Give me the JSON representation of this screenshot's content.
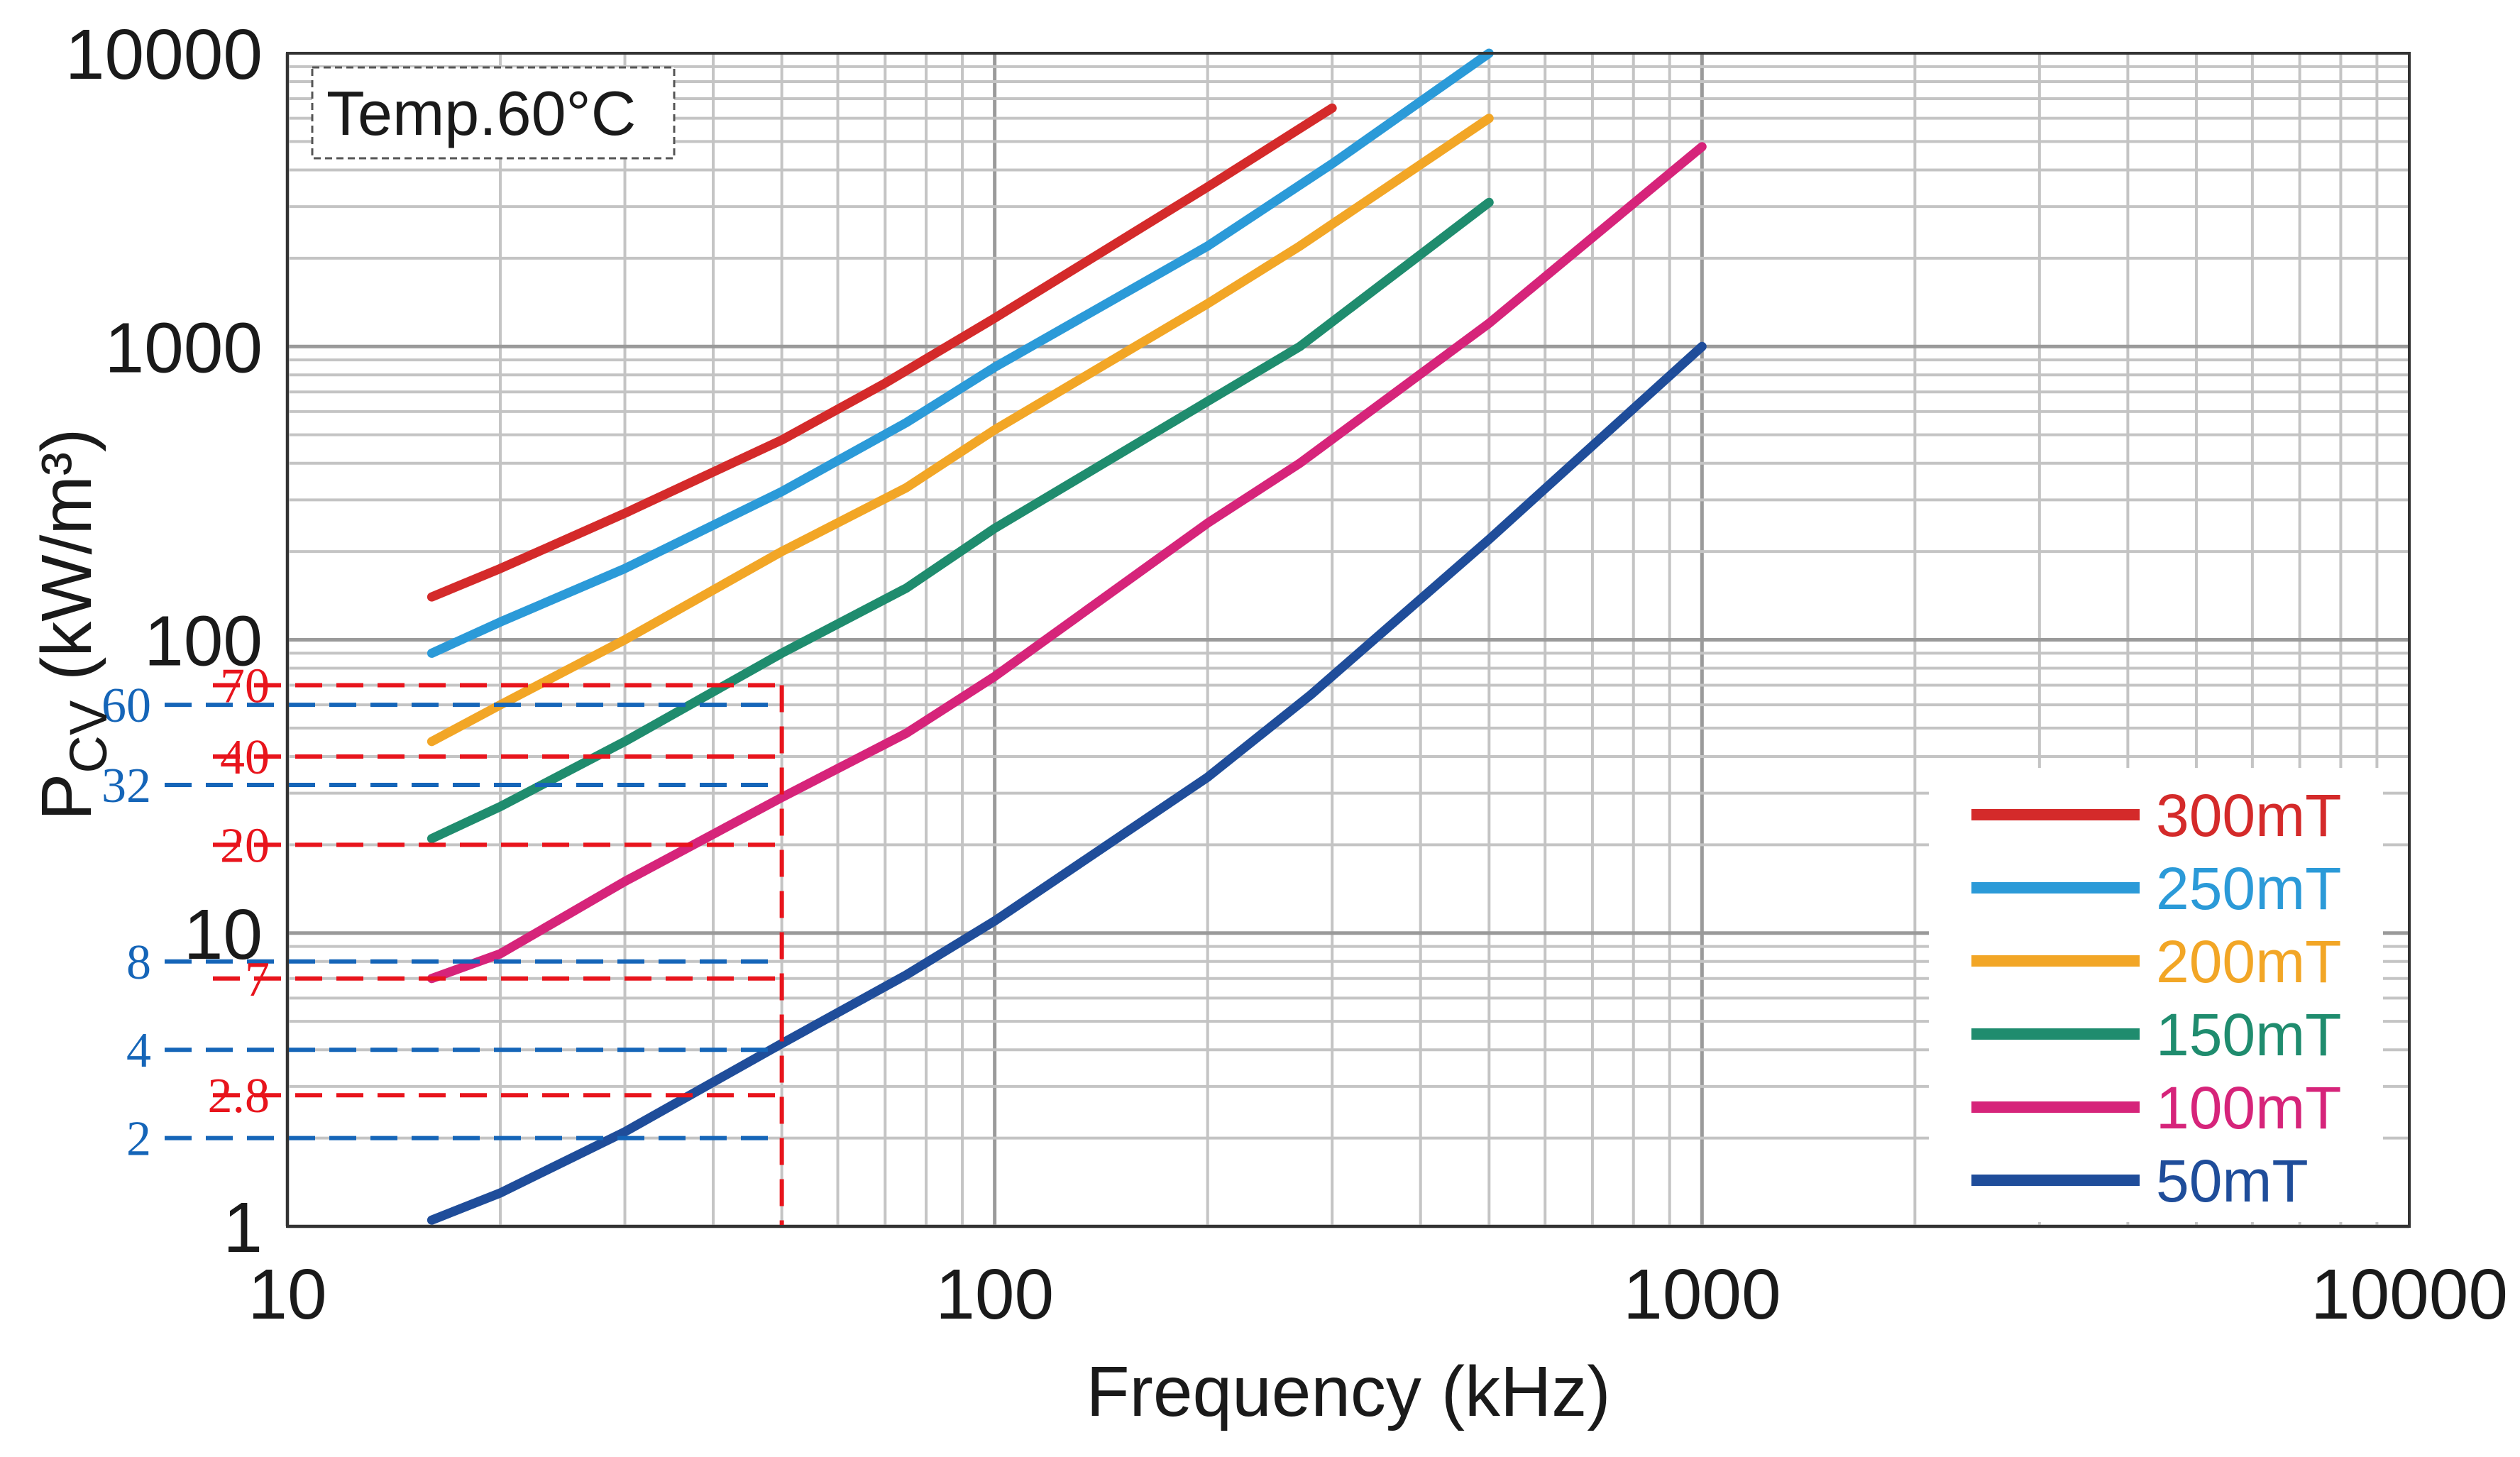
{
  "chart_data": {
    "type": "line",
    "x_scale": "log",
    "y_scale": "log",
    "xlim": [
      10,
      10000
    ],
    "ylim": [
      1,
      10000
    ],
    "xlabel": "Frequency (kHz)",
    "ylabel_main": "P",
    "ylabel_sub": "CV",
    "ylabel_rest": " (kW/m³)",
    "annotation_box": "Temp.60°C",
    "x_ticks": [
      {
        "value": 10,
        "label": "10"
      },
      {
        "value": 100,
        "label": "100"
      },
      {
        "value": 1000,
        "label": "1000"
      },
      {
        "value": 10000,
        "label": "10000"
      }
    ],
    "y_ticks": [
      {
        "value": 1,
        "label": "1"
      },
      {
        "value": 10,
        "label": "10"
      },
      {
        "value": 100,
        "label": "100"
      },
      {
        "value": 1000,
        "label": "1000"
      },
      {
        "value": 10000,
        "label": "10000"
      }
    ],
    "legend_position": "bottom-right",
    "series": [
      {
        "name": "300mT",
        "color": "#d42a2a",
        "points": [
          [
            16,
            140
          ],
          [
            20,
            175
          ],
          [
            30,
            270
          ],
          [
            50,
            480
          ],
          [
            70,
            750
          ],
          [
            100,
            1250
          ],
          [
            200,
            3500
          ],
          [
            300,
            6500
          ]
        ]
      },
      {
        "name": "250mT",
        "color": "#2b9ad8",
        "points": [
          [
            16,
            90
          ],
          [
            20,
            115
          ],
          [
            30,
            175
          ],
          [
            50,
            320
          ],
          [
            75,
            550
          ],
          [
            100,
            850
          ],
          [
            200,
            2200
          ],
          [
            300,
            4200
          ],
          [
            500,
            10000
          ]
        ]
      },
      {
        "name": "200mT",
        "color": "#f2a626",
        "points": [
          [
            16,
            45
          ],
          [
            20,
            60
          ],
          [
            30,
            100
          ],
          [
            50,
            200
          ],
          [
            75,
            330
          ],
          [
            100,
            520
          ],
          [
            200,
            1400
          ],
          [
            270,
            2200
          ],
          [
            500,
            6000
          ]
        ]
      },
      {
        "name": "150mT",
        "color": "#1f8c6e",
        "points": [
          [
            16,
            21
          ],
          [
            20,
            27
          ],
          [
            30,
            45
          ],
          [
            50,
            90
          ],
          [
            75,
            150
          ],
          [
            100,
            240
          ],
          [
            200,
            650
          ],
          [
            270,
            1000
          ],
          [
            500,
            3100
          ]
        ]
      },
      {
        "name": "100mT",
        "color": "#d6247a",
        "points": [
          [
            16,
            7
          ],
          [
            20,
            8.5
          ],
          [
            30,
            15
          ],
          [
            50,
            29
          ],
          [
            75,
            48
          ],
          [
            100,
            75
          ],
          [
            200,
            250
          ],
          [
            270,
            400
          ],
          [
            500,
            1200
          ],
          [
            1000,
            4800
          ]
        ]
      },
      {
        "name": "50mT",
        "color": "#1f4d9a",
        "points": [
          [
            16,
            1.05
          ],
          [
            20,
            1.3
          ],
          [
            30,
            2.1
          ],
          [
            50,
            4.2
          ],
          [
            75,
            7.2
          ],
          [
            100,
            11
          ],
          [
            200,
            34
          ],
          [
            280,
            65
          ],
          [
            500,
            220
          ],
          [
            1000,
            1000
          ]
        ]
      }
    ],
    "ref_x_value": 50,
    "red_ref_lines": [
      {
        "value": 70,
        "label": "70"
      },
      {
        "value": 40,
        "label": "40"
      },
      {
        "value": 20,
        "label": "20"
      },
      {
        "value": 7,
        "label": "7"
      },
      {
        "value": 2.8,
        "label": "2.8"
      }
    ],
    "blue_ref_lines": [
      {
        "value": 60,
        "label": "60"
      },
      {
        "value": 32,
        "label": "32"
      },
      {
        "value": 8,
        "label": "8"
      },
      {
        "value": 4,
        "label": "4"
      },
      {
        "value": 2,
        "label": "2"
      }
    ],
    "ref_colors": {
      "red": "#e8141c",
      "blue": "#1565b8"
    }
  }
}
